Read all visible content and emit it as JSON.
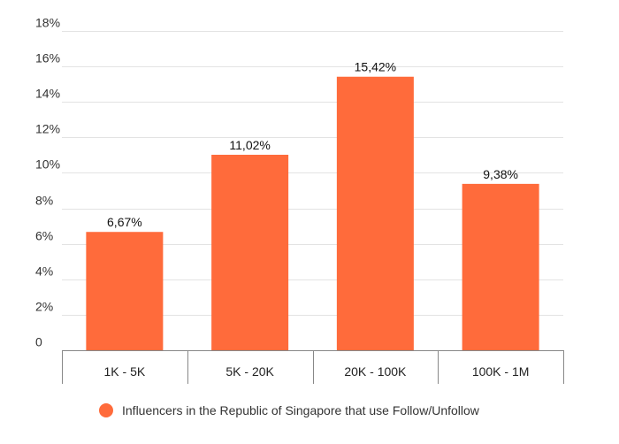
{
  "chart_data": {
    "type": "bar",
    "categories": [
      "1K - 5K",
      "5K - 20K",
      "20K - 100K",
      "100K - 1M"
    ],
    "series": [
      {
        "name": "Influencers in the Republic of Singapore that use Follow/Unfollow",
        "values": [
          6.67,
          11.02,
          15.42,
          9.38
        ],
        "data_labels": [
          "6,67%",
          "11,02%",
          "15,42%",
          "9,38%"
        ],
        "color": "#ff6b3b"
      }
    ],
    "ylim": [
      0,
      18
    ],
    "yticks": [
      0,
      2,
      4,
      6,
      8,
      10,
      12,
      14,
      16,
      18
    ],
    "ytick_labels": [
      "0",
      "2%",
      "4%",
      "6%",
      "8%",
      "10%",
      "12%",
      "14%",
      "16%",
      "18%"
    ],
    "grid": true,
    "legend_position": "bottom"
  }
}
